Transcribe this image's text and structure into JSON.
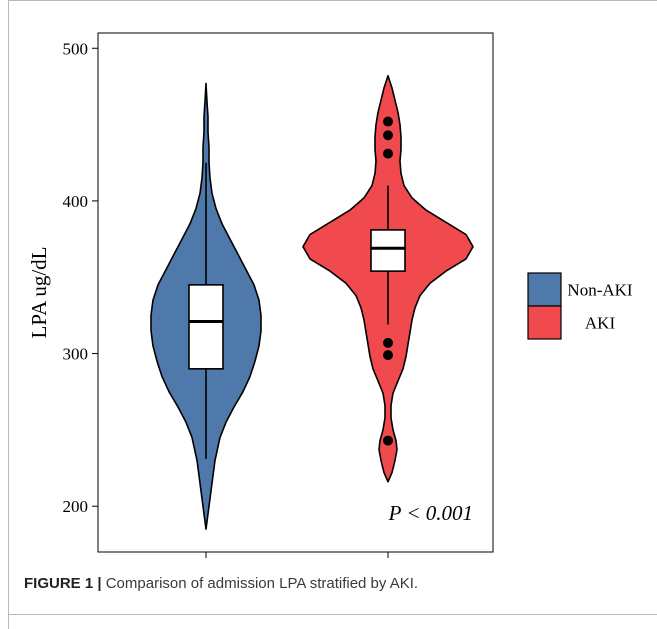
{
  "chart_data": {
    "type": "violin",
    "ylabel": "LPA ug/dL",
    "xlabel": "",
    "ylim": [
      170,
      510
    ],
    "yticks": [
      200,
      300,
      400,
      500
    ],
    "categories": [
      "Non-AKI",
      "AKI"
    ],
    "groups": [
      {
        "name": "Non-AKI",
        "color": "#4f79aa",
        "box": {
          "min": 231,
          "q1": 290,
          "median": 321,
          "q3": 345,
          "max": 425
        },
        "outliers": [],
        "violin_range": [
          185,
          477
        ],
        "density": [
          [
            185,
            0
          ],
          [
            195,
            2
          ],
          [
            205,
            4
          ],
          [
            215,
            6
          ],
          [
            230,
            9
          ],
          [
            245,
            14
          ],
          [
            255,
            20
          ],
          [
            265,
            28
          ],
          [
            275,
            37
          ],
          [
            285,
            44
          ],
          [
            295,
            49
          ],
          [
            305,
            53
          ],
          [
            315,
            55
          ],
          [
            325,
            55
          ],
          [
            335,
            53
          ],
          [
            345,
            48
          ],
          [
            355,
            40
          ],
          [
            365,
            32
          ],
          [
            375,
            24
          ],
          [
            385,
            16
          ],
          [
            395,
            10
          ],
          [
            405,
            6
          ],
          [
            415,
            4
          ],
          [
            425,
            3
          ],
          [
            435,
            3
          ],
          [
            445,
            2
          ],
          [
            455,
            2
          ],
          [
            465,
            1
          ],
          [
            477,
            0
          ]
        ]
      },
      {
        "name": "AKI",
        "color": "#f04a4e",
        "box": {
          "min": 319,
          "q1": 354,
          "median": 369,
          "q3": 381,
          "max": 410
        },
        "outliers": [
          243,
          299,
          307,
          431,
          443,
          452
        ],
        "violin_range": [
          216,
          482
        ],
        "density": [
          [
            216,
            0
          ],
          [
            222,
            4
          ],
          [
            230,
            7
          ],
          [
            237,
            9
          ],
          [
            243,
            8
          ],
          [
            250,
            5
          ],
          [
            258,
            3
          ],
          [
            266,
            3
          ],
          [
            274,
            5
          ],
          [
            282,
            10
          ],
          [
            290,
            15
          ],
          [
            298,
            18
          ],
          [
            306,
            20
          ],
          [
            314,
            22
          ],
          [
            322,
            24
          ],
          [
            330,
            27
          ],
          [
            338,
            32
          ],
          [
            346,
            42
          ],
          [
            354,
            58
          ],
          [
            362,
            78
          ],
          [
            370,
            85
          ],
          [
            378,
            78
          ],
          [
            386,
            58
          ],
          [
            394,
            38
          ],
          [
            402,
            24
          ],
          [
            410,
            16
          ],
          [
            418,
            13
          ],
          [
            426,
            12
          ],
          [
            434,
            13
          ],
          [
            442,
            13
          ],
          [
            450,
            12
          ],
          [
            458,
            10
          ],
          [
            466,
            7
          ],
          [
            474,
            4
          ],
          [
            482,
            0
          ]
        ]
      }
    ],
    "annotation": "P < 0.001",
    "legend": {
      "position": "right",
      "entries": [
        {
          "label": "Non-AKI",
          "color": "#4f79aa"
        },
        {
          "label": "AKI",
          "color": "#f04a4e"
        }
      ]
    },
    "grid": false
  },
  "caption": {
    "label": "FIGURE 1 |",
    "text": " Comparison of admission LPA stratified by AKI."
  }
}
